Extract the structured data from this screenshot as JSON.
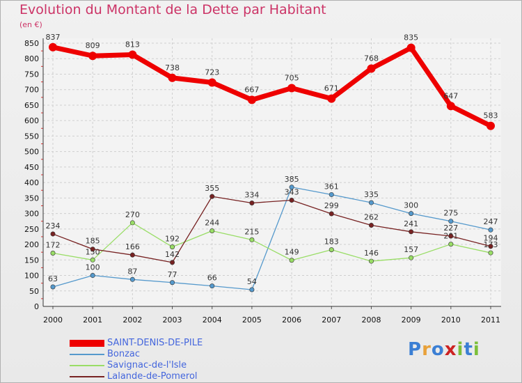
{
  "title": "Evolution du Montant de la Dette par Habitant",
  "unit_label": "(en €)",
  "logo": {
    "text": "Proxiti",
    "colors": [
      "#3b7fd4",
      "#e8a13a",
      "#3b7fd4",
      "#cc2222",
      "#7cbf3a",
      "#3b7fd4",
      "#7cbf3a"
    ]
  },
  "chart_data": {
    "type": "line",
    "x": [
      "2000",
      "2001",
      "2002",
      "2003",
      "2004",
      "2005",
      "2006",
      "2007",
      "2008",
      "2009",
      "2010",
      "2011"
    ],
    "ylim": [
      0,
      850
    ],
    "yticks": [
      0,
      50,
      100,
      150,
      200,
      250,
      300,
      350,
      400,
      450,
      500,
      550,
      600,
      650,
      700,
      750,
      800,
      850
    ],
    "grid": true,
    "legend_position": "bottom-left",
    "series": [
      {
        "name": "SAINT-DENIS-DE-PILE",
        "color": "#ee0000",
        "values": [
          837,
          809,
          813,
          738,
          723,
          667,
          705,
          671,
          768,
          835,
          647,
          583
        ]
      },
      {
        "name": "Bonzac",
        "color": "#5599cc",
        "values": [
          63,
          100,
          87,
          77,
          66,
          54,
          385,
          361,
          335,
          300,
          275,
          247
        ]
      },
      {
        "name": "Savignac-de-l'Isle",
        "color": "#99dd66",
        "values": [
          172,
          150,
          270,
          192,
          244,
          215,
          149,
          183,
          146,
          157,
          201,
          173
        ]
      },
      {
        "name": "Lalande-de-Pomerol",
        "color": "#772222",
        "values": [
          234,
          185,
          166,
          142,
          355,
          334,
          343,
          299,
          262,
          241,
          227,
          194
        ]
      }
    ]
  }
}
